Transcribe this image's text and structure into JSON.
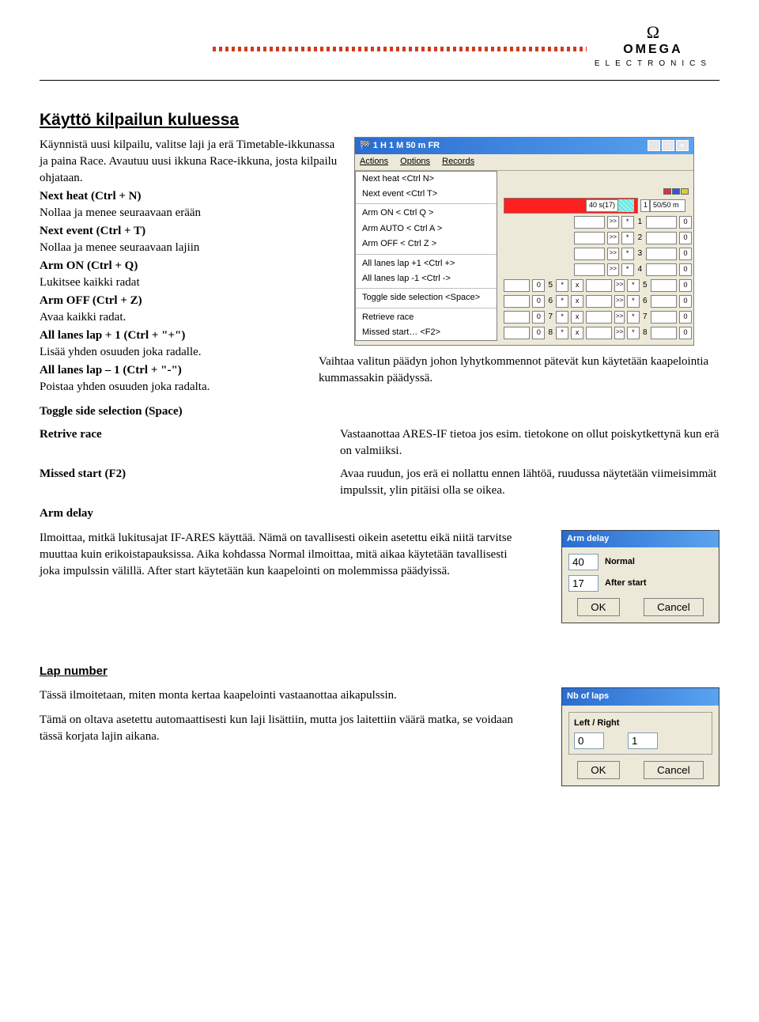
{
  "logo": {
    "symbol": "Ω",
    "brand": "OMEGA",
    "sub": "ELECTRONICS"
  },
  "title": "Käyttö kilpailun kuluessa",
  "intro": "Käynnistä uusi kilpailu, valitse laji ja erä Timetable-ikkunassa ja paina Race. Avautuu uusi ikkuna Race-ikkuna, josta kilpailu ohjataan.",
  "commands": [
    {
      "head": "Next heat (Ctrl + N)",
      "desc": "Nollaa ja menee seuraavaan erään"
    },
    {
      "head": "Next event (Ctrl + T)",
      "desc": "Nollaa ja menee seuraavaan lajiin"
    },
    {
      "head": "Arm ON (Ctrl + Q)",
      "desc": "Lukitsee kaikki radat"
    },
    {
      "head": "Arm OFF (Ctrl + Z)",
      "desc": "Avaa kaikki radat."
    },
    {
      "head": "All lanes lap + 1 (Ctrl + \"+\")",
      "desc": "Lisää yhden osuuden joka radalle."
    },
    {
      "head": "All lanes lap – 1 (Ctrl + \"-\")",
      "desc": "Poistaa yhden osuuden joka radalta."
    }
  ],
  "toggle": {
    "head": "Toggle side selection (Space)",
    "text": "Vaihtaa valitun päädyn johon lyhytkommennot pätevät kun käytetään kaapelointia kummassakin päädyssä."
  },
  "retrieve": {
    "head": "Retrive race",
    "text": "Vastaanottaa ARES-IF tietoa jos esim. tietokone on ollut poiskytkettynä kun erä on valmiiksi."
  },
  "missed": {
    "head": "Missed start (F2)",
    "text": "Avaa ruudun, jos erä ei nollattu ennen lähtöä, ruudussa näytetään viimeisimmät impulssit, ylin pitäisi olla se oikea."
  },
  "armdelay": {
    "head": "Arm delay",
    "text": "Ilmoittaa, mitkä lukitusajat IF-ARES käyttää. Nämä on tavallisesti oikein asetettu eikä niitä tarvitse muuttaa kuin erikoistapauksissa. Aika kohdassa Normal ilmoittaa, mitä aikaa käytetään tavallisesti joka impulssin välillä. After start käytetään kun kaapelointi on molemmissa päädyissä.",
    "dialog_title": "Arm delay",
    "normal_val": "40",
    "normal_lbl": "Normal",
    "after_val": "17",
    "after_lbl": "After start",
    "ok": "OK",
    "cancel": "Cancel"
  },
  "lapnumber": {
    "title": "Lap number",
    "p1": "Tässä ilmoitetaan, miten monta kertaa kaapelointi vastaanottaa aikapulssin.",
    "p2": "Tämä on oltava asetettu automaattisesti kun laji lisättiin, mutta jos laitettiin väärä matka, se voidaan tässä korjata lajin aikana.",
    "dialog_title": "Nb of laps",
    "legend": "Left / Right",
    "left_val": "0",
    "right_val": "1",
    "ok": "OK",
    "cancel": "Cancel"
  },
  "race_win": {
    "title": "1 H 1  M 50 m FR",
    "menu": {
      "a": "Actions",
      "b": "Options",
      "c": "Records"
    },
    "items": [
      "Next heat  <Ctrl N>",
      "Next event  <Ctrl T>",
      "Arm ON   < Ctrl Q >",
      "Arm AUTO  < Ctrl A >",
      "Arm OFF  < Ctrl Z >",
      "All lanes lap +1  <Ctrl +>",
      "All lanes lap -1  <Ctrl ->",
      "Toggle side selection  <Space>",
      "Retrieve race",
      "Missed start…  <F2>"
    ],
    "hdr_time": "40 s(17)",
    "hdr_lane_num": "1",
    "hdr_dist": "50/50 m",
    "lanes": [
      1,
      2,
      3,
      4,
      5,
      6,
      7,
      8
    ]
  }
}
